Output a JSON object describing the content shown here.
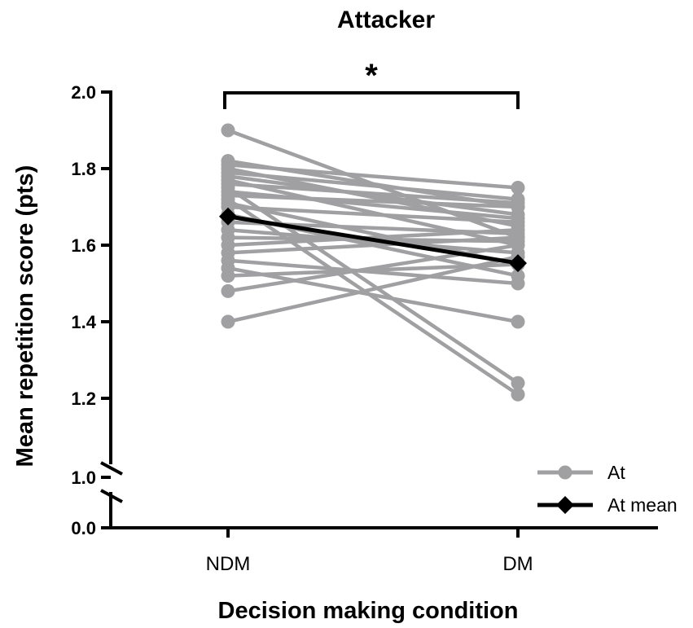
{
  "chart_data": {
    "type": "line",
    "title": "Attacker",
    "xlabel": "Decision making condition",
    "ylabel": "Mean repetition score (pts)",
    "categories": [
      "NDM",
      "DM"
    ],
    "ylim": [
      0.0,
      2.0
    ],
    "y_axis_break": [
      1.0,
      1.2
    ],
    "y_ticks_lower": [
      "0.0",
      "1.0"
    ],
    "y_ticks_upper": [
      "1.2",
      "1.4",
      "1.6",
      "1.8",
      "2.0"
    ],
    "significance": "*",
    "grid": false,
    "legend_position": "bottom-right",
    "colors": {
      "individual": "#a0a0a3",
      "mean": "#000000"
    },
    "series": [
      {
        "name": "At",
        "pairs": [
          [
            1.9,
            1.62
          ],
          [
            1.82,
            1.7
          ],
          [
            1.81,
            1.75
          ],
          [
            1.8,
            1.65
          ],
          [
            1.79,
            1.72
          ],
          [
            1.78,
            1.68
          ],
          [
            1.77,
            1.6
          ],
          [
            1.76,
            1.71
          ],
          [
            1.75,
            1.24
          ],
          [
            1.74,
            1.67
          ],
          [
            1.73,
            1.7
          ],
          [
            1.72,
            1.21
          ],
          [
            1.71,
            1.55
          ],
          [
            1.7,
            1.66
          ],
          [
            1.68,
            1.52
          ],
          [
            1.66,
            1.63
          ],
          [
            1.64,
            1.58
          ],
          [
            1.62,
            1.61
          ],
          [
            1.6,
            1.64
          ],
          [
            1.58,
            1.62
          ],
          [
            1.56,
            1.5
          ],
          [
            1.54,
            1.4
          ],
          [
            1.52,
            1.55
          ],
          [
            1.48,
            1.6
          ],
          [
            1.4,
            1.57
          ]
        ]
      },
      {
        "name": "At mean",
        "values": [
          1.675,
          1.553
        ]
      }
    ]
  }
}
